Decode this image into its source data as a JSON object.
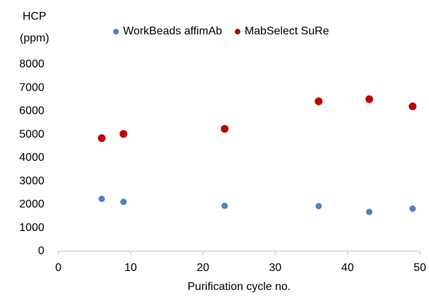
{
  "chart_data": {
    "type": "scatter",
    "y_label_lines": [
      "HCP",
      "(ppm)"
    ],
    "x_label": "Purification cycle no.",
    "xlim": [
      0,
      50
    ],
    "xticks": [
      0,
      10,
      20,
      30,
      40,
      50
    ],
    "ylim": [
      0,
      8000
    ],
    "yticks": [
      0,
      1000,
      2000,
      3000,
      4000,
      5000,
      6000,
      7000,
      8000
    ],
    "grid": false,
    "legend": "top",
    "series": [
      {
        "name": "WorkBeads affimAb",
        "color": "#4f81bd",
        "x": [
          6,
          9,
          23,
          36,
          43,
          49
        ],
        "values": [
          2250,
          2120,
          1950,
          1940,
          1690,
          1830
        ]
      },
      {
        "name": "MabSelect SuRe",
        "color": "#c00000",
        "x": [
          6,
          9,
          23,
          36,
          43,
          49
        ],
        "values": [
          4850,
          5030,
          5250,
          6430,
          6520,
          6210
        ]
      }
    ]
  }
}
